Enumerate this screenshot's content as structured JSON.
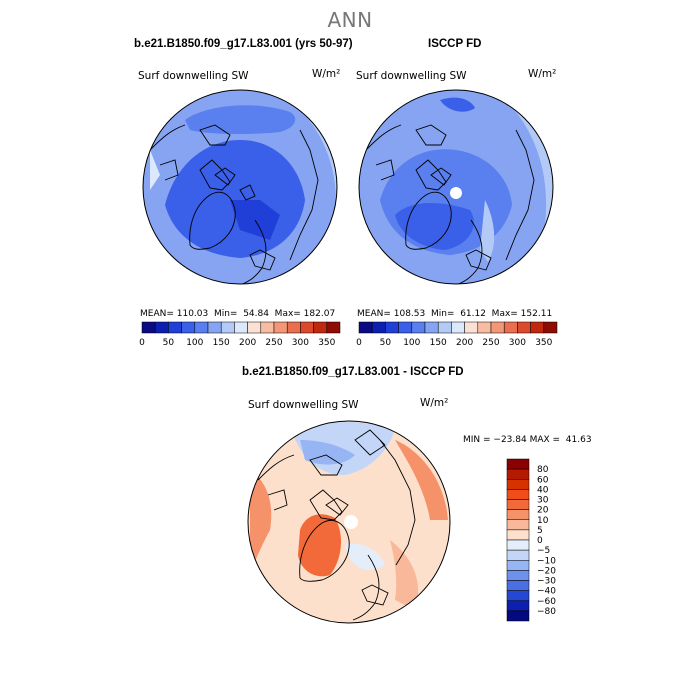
{
  "page_title": "ANN",
  "chart_data": [
    {
      "type": "heatmap",
      "projection": "north polar stereographic",
      "case_title": "b.e21.B1850.f09_g17.L83.001 (yrs 50-97)",
      "variable": "Surf downwelling SW",
      "units": "W/m²",
      "stats": {
        "mean": 110.03,
        "min": 54.84,
        "max": 182.07
      },
      "stats_text": "MEAN= 110.03  Min=  54.84  Max= 182.07",
      "colorbar": {
        "orientation": "horizontal",
        "ticks": [
          "0",
          "50",
          "100",
          "150",
          "200",
          "250",
          "300",
          "350"
        ],
        "levels": [
          0,
          25,
          50,
          75,
          100,
          125,
          150,
          175,
          200,
          225,
          250,
          275,
          300,
          325,
          350
        ]
      }
    },
    {
      "type": "heatmap",
      "projection": "north polar stereographic",
      "case_title": "ISCCP FD",
      "variable": "Surf downwelling SW",
      "units": "W/m²",
      "stats": {
        "mean": 108.53,
        "min": 61.12,
        "max": 152.11
      },
      "stats_text": "MEAN= 108.53  Min=  61.12  Max= 152.11",
      "colorbar": {
        "orientation": "horizontal",
        "ticks": [
          "0",
          "50",
          "100",
          "150",
          "200",
          "250",
          "300",
          "350"
        ],
        "levels": [
          0,
          25,
          50,
          75,
          100,
          125,
          150,
          175,
          200,
          225,
          250,
          275,
          300,
          325,
          350
        ]
      }
    },
    {
      "type": "heatmap",
      "projection": "north polar stereographic",
      "case_title": "b.e21.B1850.f09_g17.L83.001 - ISCCP FD",
      "variable": "Surf downwelling SW",
      "units": "W/m²",
      "stats": {
        "min": -23.84,
        "max": 41.63
      },
      "stats_text": "MIN = −23.84 MAX =  41.63",
      "colorbar": {
        "orientation": "vertical",
        "ticks": [
          "80",
          "60",
          "40",
          "30",
          "20",
          "10",
          "5",
          "0",
          "−5",
          "−10",
          "−20",
          "−30",
          "−40",
          "−60",
          "−80"
        ]
      }
    }
  ],
  "colors": {
    "seq_palette": [
      "#0a0a82",
      "#0b1fb0",
      "#1f3fd8",
      "#3a5fe8",
      "#5a7fee",
      "#86a4f2",
      "#b4caf6",
      "#dce8fb",
      "#fbe1d4",
      "#f8bca2",
      "#f39777",
      "#ea6f4f",
      "#db4a2c",
      "#c0280f",
      "#8e0c04"
    ],
    "diff_palette": [
      "#8b0000",
      "#b31a00",
      "#d63200",
      "#ef4d1a",
      "#f26a3a",
      "#f6926a",
      "#f9b899",
      "#fce0cc",
      "#e4eefb",
      "#c3d6f7",
      "#97b5f2",
      "#6d91ec",
      "#4a6fe3",
      "#2447d4",
      "#0d1fae",
      "#030a80"
    ]
  }
}
